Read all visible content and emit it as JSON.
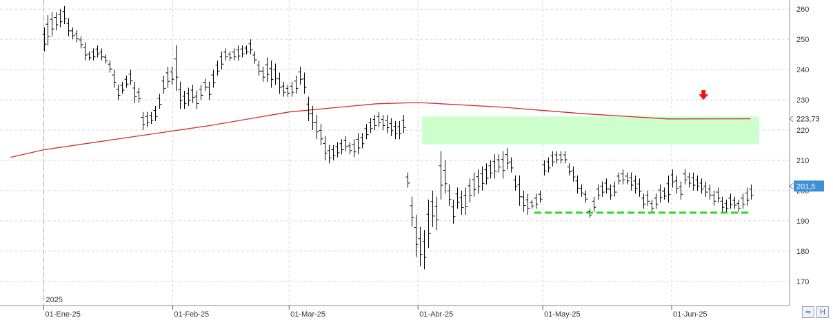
{
  "chart_data": {
    "type": "ohlc",
    "ylim": [
      162,
      263
    ],
    "yticks": [
      170,
      180,
      190,
      200,
      210,
      220,
      230,
      240,
      250,
      260
    ],
    "xtick_labels": [
      {
        "label": "01-Ene-25",
        "day": 0
      },
      {
        "label": "01-Feb-25",
        "day": 31
      },
      {
        "label": "01-Mar-25",
        "day": 59
      },
      {
        "label": "01-Abr-25",
        "day": 90
      },
      {
        "label": "01-May-25",
        "day": 120
      },
      {
        "label": "01-Jun-25",
        "day": 151
      }
    ],
    "year_label": "2025",
    "day0": "2025-01-01",
    "last_day": 170,
    "candles_hl": [
      [
        254,
        246
      ],
      [
        258,
        248
      ],
      [
        259,
        251
      ],
      [
        259,
        253
      ],
      [
        260,
        254
      ],
      [
        261,
        255
      ],
      [
        257,
        251
      ],
      [
        254,
        250
      ],
      [
        253,
        249
      ],
      [
        251,
        247
      ],
      [
        249,
        243
      ],
      [
        246,
        243
      ],
      [
        247,
        243
      ],
      [
        248,
        244
      ],
      [
        247,
        243
      ],
      [
        245,
        242
      ],
      [
        243,
        239
      ],
      [
        240,
        234
      ],
      [
        235,
        230
      ],
      [
        236,
        232
      ],
      [
        238,
        234
      ],
      [
        240,
        235
      ],
      [
        236,
        229
      ],
      [
        234,
        229
      ],
      [
        226,
        220
      ],
      [
        226,
        221
      ],
      [
        226,
        222
      ],
      [
        228,
        223
      ],
      [
        232,
        227
      ],
      [
        238,
        232
      ],
      [
        241,
        234
      ],
      [
        241,
        235
      ],
      [
        248,
        233
      ],
      [
        236,
        227
      ],
      [
        233,
        227
      ],
      [
        234,
        228
      ],
      [
        235,
        229
      ],
      [
        233,
        227
      ],
      [
        235,
        230
      ],
      [
        237,
        233
      ],
      [
        236,
        230
      ],
      [
        240,
        234
      ],
      [
        243,
        238
      ],
      [
        246,
        240
      ],
      [
        247,
        243
      ],
      [
        246,
        243
      ],
      [
        247,
        243
      ],
      [
        248,
        243
      ],
      [
        248,
        244
      ],
      [
        248,
        245
      ],
      [
        250,
        245
      ],
      [
        246,
        242
      ],
      [
        243,
        238
      ],
      [
        241,
        236
      ],
      [
        244,
        236
      ],
      [
        243,
        234
      ],
      [
        242,
        235
      ],
      [
        239,
        232
      ],
      [
        236,
        231
      ],
      [
        235,
        231
      ],
      [
        236,
        231
      ],
      [
        238,
        232
      ],
      [
        241,
        235
      ],
      [
        239,
        232
      ],
      [
        231,
        223
      ],
      [
        228,
        220
      ],
      [
        225,
        217
      ],
      [
        222,
        215
      ],
      [
        218,
        210
      ],
      [
        215,
        209
      ],
      [
        215,
        210
      ],
      [
        216,
        211
      ],
      [
        217,
        212
      ],
      [
        218,
        213
      ],
      [
        216,
        212
      ],
      [
        217,
        211
      ],
      [
        219,
        212
      ],
      [
        219,
        214
      ],
      [
        222,
        217
      ],
      [
        224,
        219
      ],
      [
        225,
        220
      ],
      [
        226,
        221
      ],
      [
        225,
        220
      ],
      [
        225,
        219
      ],
      [
        224,
        218
      ],
      [
        223,
        217
      ],
      [
        223,
        217
      ],
      [
        225,
        219
      ],
      [
        206,
        201
      ],
      [
        198,
        188
      ],
      [
        192,
        178
      ],
      [
        188,
        175
      ],
      [
        187,
        174
      ],
      [
        197,
        181
      ],
      [
        200,
        188
      ],
      [
        198,
        187
      ],
      [
        213,
        197
      ],
      [
        210,
        199
      ],
      [
        202,
        195
      ],
      [
        197,
        189
      ],
      [
        201,
        194
      ],
      [
        200,
        192
      ],
      [
        201,
        192
      ],
      [
        204,
        196
      ],
      [
        206,
        198
      ],
      [
        207,
        199
      ],
      [
        208,
        200
      ],
      [
        209,
        202
      ],
      [
        210,
        204
      ],
      [
        212,
        204
      ],
      [
        212,
        206
      ],
      [
        213,
        204
      ],
      [
        214,
        207
      ],
      [
        211,
        206
      ],
      [
        205,
        200
      ],
      [
        205,
        195
      ],
      [
        200,
        193
      ],
      [
        199,
        192
      ],
      [
        197,
        194
      ],
      [
        199,
        194
      ],
      [
        200,
        196
      ],
      [
        210,
        205
      ],
      [
        211,
        206
      ],
      [
        213,
        208
      ],
      [
        213,
        209
      ],
      [
        213,
        209
      ],
      [
        213,
        209
      ],
      [
        209,
        205
      ],
      [
        208,
        203
      ],
      [
        205,
        199
      ],
      [
        202,
        198
      ],
      [
        200,
        196
      ],
      [
        194,
        191
      ],
      [
        198,
        193
      ],
      [
        202,
        197
      ],
      [
        203,
        198
      ],
      [
        204,
        199
      ],
      [
        202,
        197
      ],
      [
        203,
        198
      ],
      [
        206,
        202
      ],
      [
        207,
        202
      ],
      [
        206,
        202
      ],
      [
        206,
        200
      ],
      [
        205,
        199
      ],
      [
        204,
        198
      ],
      [
        199,
        194
      ],
      [
        200,
        195
      ],
      [
        197,
        193
      ],
      [
        199,
        194
      ],
      [
        202,
        196
      ],
      [
        201,
        197
      ],
      [
        205,
        196
      ],
      [
        207,
        201
      ],
      [
        205,
        199
      ],
      [
        203,
        197
      ],
      [
        207,
        202
      ],
      [
        206,
        201
      ],
      [
        206,
        200
      ],
      [
        205,
        200
      ],
      [
        204,
        199
      ],
      [
        203,
        198
      ],
      [
        202,
        197
      ],
      [
        200,
        195
      ],
      [
        201,
        196
      ],
      [
        198,
        193
      ],
      [
        197,
        193
      ],
      [
        199,
        194
      ],
      [
        198,
        194
      ],
      [
        197,
        193
      ],
      [
        199,
        194
      ],
      [
        201,
        195
      ],
      [
        202,
        197
      ]
    ],
    "moving_average": {
      "color": "#d42a2a",
      "points": [
        [
          -8,
          211
        ],
        [
          0,
          213.5
        ],
        [
          20,
          217.5
        ],
        [
          40,
          221.5
        ],
        [
          59,
          226
        ],
        [
          80,
          228.7
        ],
        [
          90,
          229.1
        ],
        [
          110,
          227.6
        ],
        [
          130,
          225.4
        ],
        [
          150,
          223.7
        ],
        [
          170,
          223.73
        ]
      ]
    },
    "last_ma_value": "223,73",
    "last_price": "201,5",
    "last_price_value": 201.5,
    "resistance_zone": {
      "from_day": 90,
      "to_day": 180,
      "low": 215.3,
      "high": 224.5,
      "color": "#ccffcc"
    },
    "support_line": {
      "from_day": 118,
      "to_day": 170,
      "value": 192.7,
      "color": "#22dd22"
    },
    "sell_signal_arrow": {
      "day": 158,
      "value": 230,
      "color": "#ee1111"
    },
    "grid": true
  },
  "controls": {
    "wave_icon": "≈",
    "save_icon": "H"
  },
  "colors": {
    "price_label_bg": "#3d8fd6",
    "grid": "#d6d6d6"
  }
}
